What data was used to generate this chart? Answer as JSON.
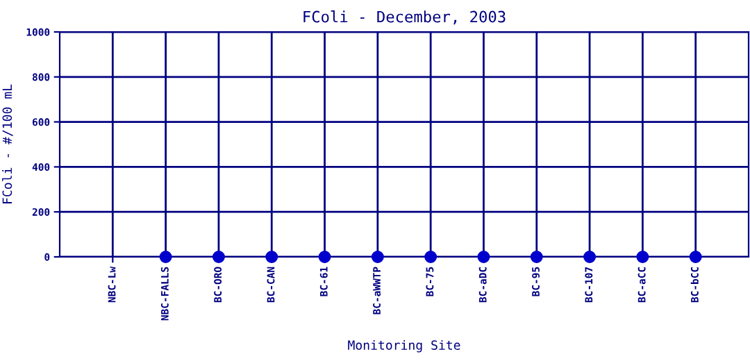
{
  "chart_data": {
    "type": "scatter",
    "title": "FColi - December, 2003",
    "xlabel": "Monitoring Site",
    "ylabel": "FColi - #/100 mL",
    "categories": [
      "NBC-Lw",
      "NBC-FALLS",
      "BC-ORO",
      "BC-CAN",
      "BC-61",
      "BC-aWWTP",
      "BC-75",
      "BC-aDC",
      "BC-95",
      "BC-107",
      "BC-aCC",
      "BC-bCC"
    ],
    "series": [
      {
        "color": "#0000cc",
        "values": [
          null,
          0,
          0,
          0,
          0,
          0,
          0,
          0,
          0,
          0,
          0,
          0
        ]
      }
    ],
    "ylim": [
      0,
      1000
    ],
    "yticks": [
      0,
      200,
      400,
      600,
      800,
      1000
    ],
    "grid": true,
    "marker": "circle",
    "legend": false
  }
}
